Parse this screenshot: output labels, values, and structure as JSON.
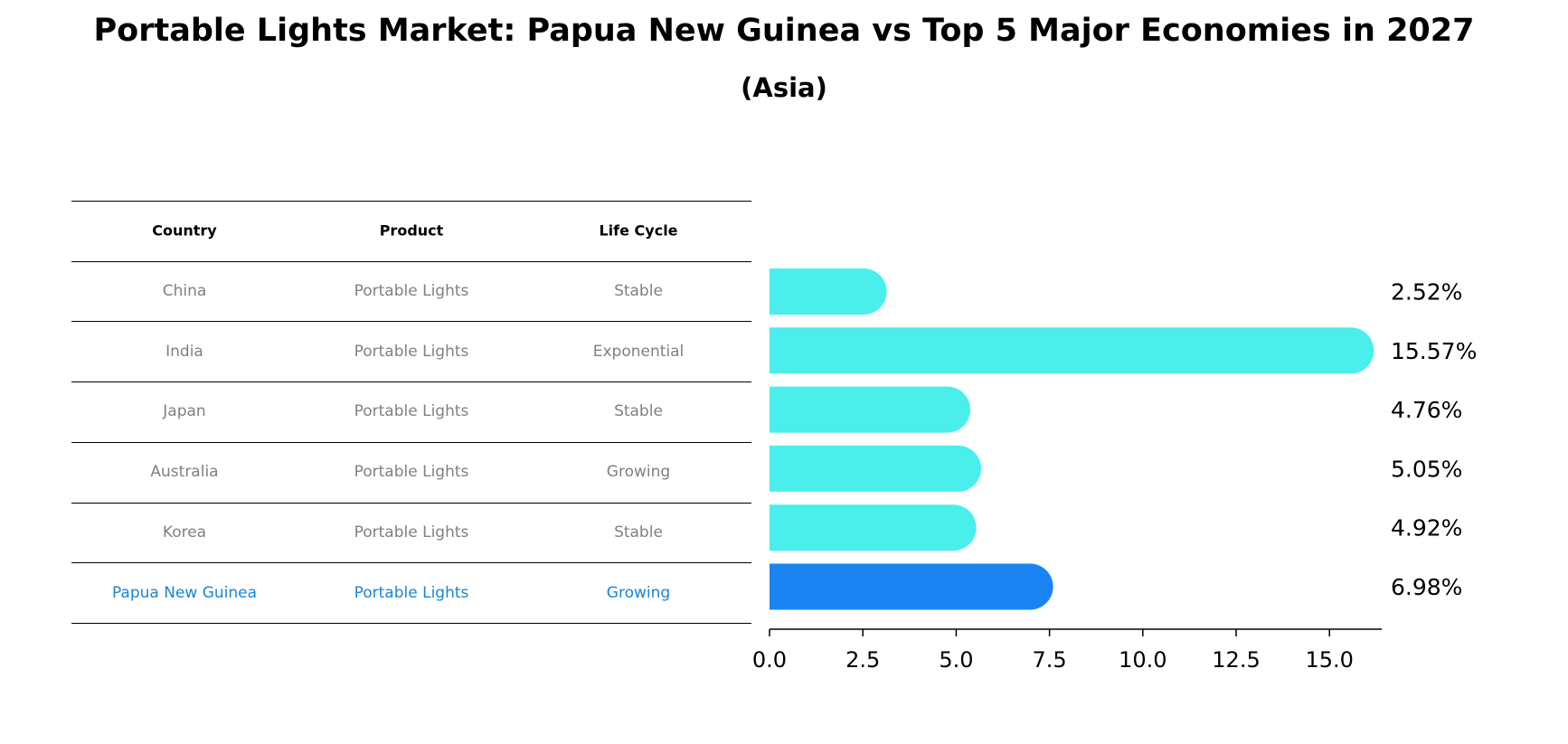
{
  "chart_data": {
    "type": "bar",
    "orientation": "horizontal",
    "title": "Portable Lights Market: Papua New Guinea vs Top 5 Major Economies in 2027",
    "subtitle": "(Asia)",
    "table": {
      "headers": [
        "Country",
        "Product",
        "Life Cycle"
      ],
      "rows": [
        [
          "China",
          "Portable Lights",
          "Stable"
        ],
        [
          "India",
          "Portable Lights",
          "Exponential"
        ],
        [
          "Japan",
          "Portable Lights",
          "Stable"
        ],
        [
          "Australia",
          "Portable Lights",
          "Growing"
        ],
        [
          "Korea",
          "Portable Lights",
          "Stable"
        ],
        [
          "Papua New Guinea",
          "Portable Lights",
          "Growing"
        ]
      ],
      "highlight_row": 5
    },
    "categories": [
      "China",
      "India",
      "Japan",
      "Australia",
      "Korea",
      "Papua New Guinea"
    ],
    "values": [
      2.52,
      15.57,
      4.76,
      5.05,
      4.92,
      6.98
    ],
    "value_labels": [
      "2.52%",
      "15.57%",
      "4.76%",
      "5.05%",
      "4.92%",
      "6.98%"
    ],
    "xlim": [
      0,
      16.4
    ],
    "xticks": [
      0.0,
      2.5,
      5.0,
      7.5,
      10.0,
      12.5,
      15.0
    ],
    "xtick_labels": [
      "0.0",
      "2.5",
      "5.0",
      "7.5",
      "10.0",
      "12.5",
      "15.0"
    ],
    "colors": {
      "bar": "#4aeeea",
      "highlight": "#1a85f2",
      "highlight_text": "#1a85d6"
    }
  }
}
